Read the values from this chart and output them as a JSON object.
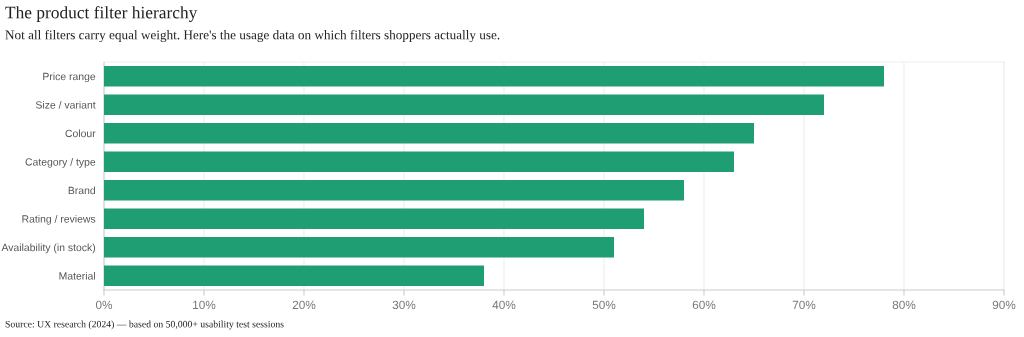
{
  "chart_data": {
    "type": "bar",
    "orientation": "horizontal",
    "title": "The product filter hierarchy",
    "subtitle": "Not all filters carry equal weight. Here's the usage data on which filters shoppers actually use.",
    "categories": [
      "Price range",
      "Size / variant",
      "Colour",
      "Category / type",
      "Brand",
      "Rating / reviews",
      "Availability (in stock)",
      "Material"
    ],
    "values": [
      78,
      72,
      65,
      63,
      58,
      54,
      51,
      38
    ],
    "color": "#1f9e74",
    "xlim": [
      0,
      90
    ],
    "xticks": [
      {
        "value": 0,
        "label": "0%"
      },
      {
        "value": 10,
        "label": "10%"
      },
      {
        "value": 20,
        "label": "20%"
      },
      {
        "value": 30,
        "label": "30%"
      },
      {
        "value": 40,
        "label": "40%"
      },
      {
        "value": 50,
        "label": "50%"
      },
      {
        "value": 60,
        "label": "60%"
      },
      {
        "value": 70,
        "label": "70%"
      },
      {
        "value": 80,
        "label": "80%"
      },
      {
        "value": 90,
        "label": "90%"
      }
    ],
    "grid": "x",
    "annotations": [
      "Source: UX research (2024) — based on 50,000+ usability test sessions"
    ]
  }
}
